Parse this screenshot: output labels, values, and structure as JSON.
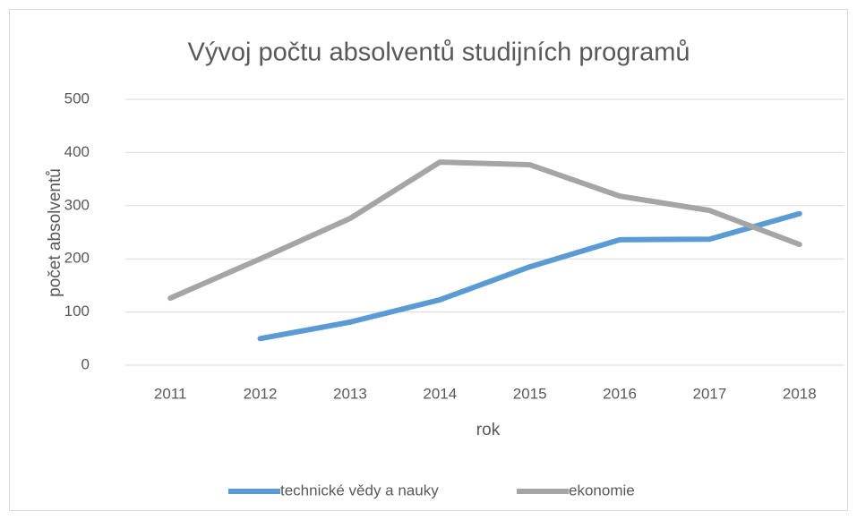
{
  "chart_data": {
    "type": "line",
    "title": "Vývoj počtu absolventů studijních programů",
    "xlabel": "rok",
    "ylabel": "počet absolventů",
    "categories": [
      "2011",
      "2012",
      "2013",
      "2014",
      "2015",
      "2016",
      "2017",
      "2018"
    ],
    "series": [
      {
        "name": "technické vědy a nauky",
        "color": "#5b9bd5",
        "values": [
          null,
          50,
          81,
          123,
          185,
          236,
          237,
          285
        ]
      },
      {
        "name": "ekonomie",
        "color": "#a5a5a5",
        "values": [
          126,
          200,
          276,
          382,
          377,
          318,
          291,
          227
        ]
      }
    ],
    "ylim": [
      0,
      500
    ],
    "yticks": [
      0,
      100,
      200,
      300,
      400,
      500
    ],
    "grid": true,
    "legend": "bottom"
  }
}
